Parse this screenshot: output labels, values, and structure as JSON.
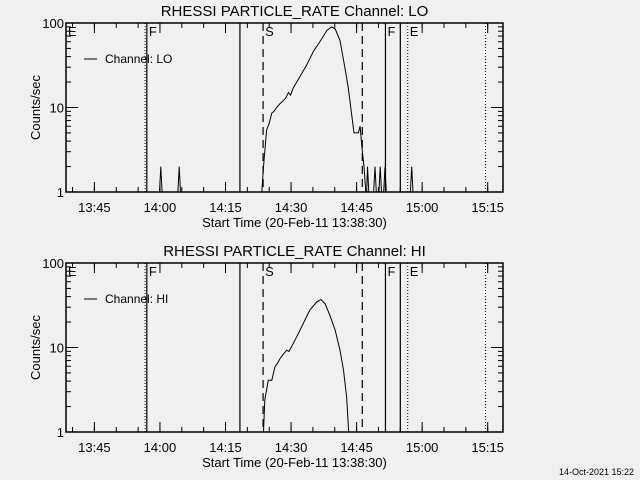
{
  "footer": {
    "timestamp": "14-Oct-2021 15:22"
  },
  "chart_data": [
    {
      "type": "line",
      "title": "RHESSI PARTICLE_RATE Channel: LO",
      "xlabel": "Start Time (20-Feb-11 13:38:30)",
      "ylabel": "Counts/sec",
      "x_units": "minutes after 13:38:30",
      "xlim": [
        0,
        100
      ],
      "ylim": [
        1,
        100
      ],
      "yscale": "log",
      "xticks": [
        6.5,
        21.5,
        36.5,
        51.5,
        66.5,
        81.5,
        96.5
      ],
      "xtick_labels": [
        "13:45",
        "14:00",
        "14:15",
        "14:30",
        "14:45",
        "15:00",
        "15:15"
      ],
      "yticks": [
        1,
        10,
        100
      ],
      "ytick_labels": [
        "1",
        "10",
        "100"
      ],
      "legend": {
        "placement": "top-left",
        "label": "Channel: LO"
      },
      "markers": [
        {
          "x": 0,
          "style": "none",
          "label": "E"
        },
        {
          "x": 18.1,
          "style": "dotted",
          "label": ""
        },
        {
          "x": 18.5,
          "style": "solid",
          "label": "F"
        },
        {
          "x": 39.8,
          "style": "solid",
          "label": ""
        },
        {
          "x": 45.1,
          "style": "dashed",
          "label": "S"
        },
        {
          "x": 67.8,
          "style": "dashed",
          "label": ""
        },
        {
          "x": 73.1,
          "style": "solid",
          "label": "F"
        },
        {
          "x": 76.5,
          "style": "solid",
          "label": ""
        },
        {
          "x": 78.2,
          "style": "dotted",
          "label": "E"
        },
        {
          "x": 96.0,
          "style": "dotted",
          "label": ""
        }
      ],
      "series": [
        {
          "name": "Channel: LO",
          "x": [
            0,
            21.4,
            21.7,
            22.0,
            25.6,
            25.9,
            26.2,
            44.8,
            45.2,
            45.9,
            46.5,
            47.1,
            47.6,
            48.2,
            48.9,
            49.7,
            50.3,
            50.9,
            51.4,
            52.0,
            53.5,
            55.1,
            56.6,
            58.1,
            59.7,
            60.8,
            61.6,
            62.7,
            63.8,
            64.6,
            65.4,
            65.9,
            66.9,
            67.3,
            67.7,
            68.2,
            68.6,
            68.8,
            69.0,
            69.3,
            70.4,
            70.7,
            71.0,
            71.6,
            71.9,
            72.2,
            72.7,
            73.0,
            73.3,
            78.8,
            79.1,
            79.4,
            100
          ],
          "y": [
            1,
            1,
            2,
            1,
            1,
            2,
            1,
            1,
            2,
            5.4,
            6.5,
            8.6,
            9.0,
            10,
            11,
            12,
            13,
            15,
            14,
            17,
            23,
            32,
            46,
            60,
            82,
            90,
            85,
            62,
            30,
            17,
            8,
            5,
            5,
            6,
            3.5,
            2,
            1,
            1,
            2,
            1,
            1,
            2,
            1,
            1,
            2,
            1,
            1,
            2,
            1,
            1,
            2,
            1,
            1
          ]
        }
      ]
    },
    {
      "type": "line",
      "title": "RHESSI PARTICLE_RATE Channel: HI",
      "xlabel": "Start Time (20-Feb-11 13:38:30)",
      "ylabel": "Counts/sec",
      "x_units": "minutes after 13:38:30",
      "xlim": [
        0,
        100
      ],
      "ylim": [
        1,
        100
      ],
      "yscale": "log",
      "xticks": [
        6.5,
        21.5,
        36.5,
        51.5,
        66.5,
        81.5,
        96.5
      ],
      "xtick_labels": [
        "13:45",
        "14:00",
        "14:15",
        "14:30",
        "14:45",
        "15:00",
        "15:15"
      ],
      "yticks": [
        1,
        10,
        100
      ],
      "ytick_labels": [
        "1",
        "10",
        "100"
      ],
      "legend": {
        "placement": "top-left",
        "label": "Channel: HI"
      },
      "markers": [
        {
          "x": 0,
          "style": "none",
          "label": "E"
        },
        {
          "x": 18.1,
          "style": "dotted",
          "label": ""
        },
        {
          "x": 18.5,
          "style": "solid",
          "label": "F"
        },
        {
          "x": 39.8,
          "style": "solid",
          "label": ""
        },
        {
          "x": 45.1,
          "style": "dashed",
          "label": "S"
        },
        {
          "x": 67.8,
          "style": "dashed",
          "label": ""
        },
        {
          "x": 73.1,
          "style": "solid",
          "label": "F"
        },
        {
          "x": 76.5,
          "style": "solid",
          "label": ""
        },
        {
          "x": 78.2,
          "style": "dotted",
          "label": "E"
        },
        {
          "x": 96.0,
          "style": "dotted",
          "label": ""
        }
      ],
      "series": [
        {
          "name": "Channel: HI",
          "x": [
            0,
            45.2,
            45.5,
            46.3,
            47.1,
            47.8,
            48.4,
            49.0,
            49.6,
            50.5,
            51.0,
            51.6,
            52.8,
            54.3,
            55.8,
            57.4,
            58.3,
            59.3,
            60.4,
            61.6,
            62.7,
            63.5,
            64.2,
            64.7,
            100
          ],
          "y": [
            1,
            1,
            2.4,
            4.1,
            4.1,
            5.9,
            6.5,
            7.4,
            8.2,
            9.3,
            9.0,
            10.2,
            13.4,
            19.3,
            27.6,
            34.6,
            37,
            33,
            24,
            16,
            9.3,
            5.4,
            2.6,
            1,
            1
          ]
        }
      ]
    }
  ]
}
